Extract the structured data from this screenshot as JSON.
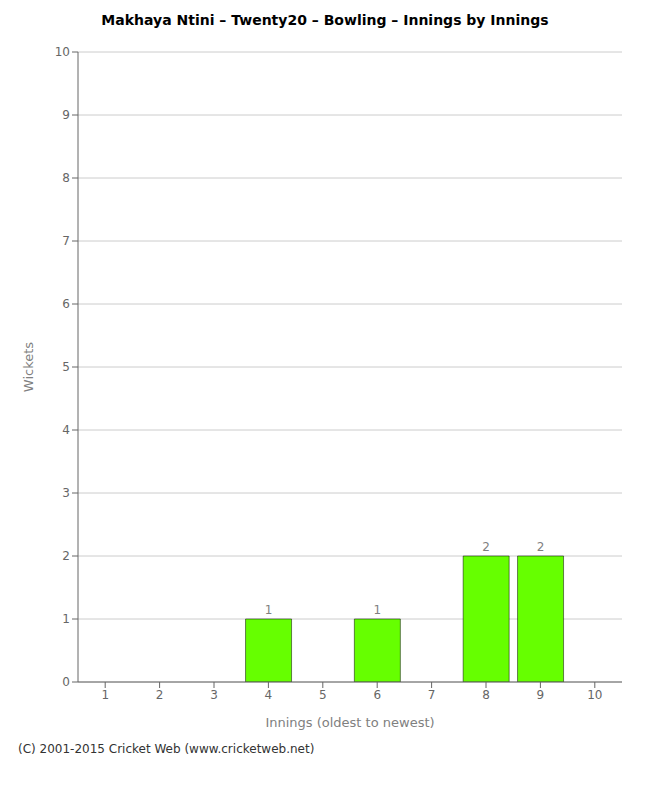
{
  "chart_data": {
    "type": "bar",
    "title": "Makhaya Ntini – Twenty20 – Bowling – Innings by Innings",
    "x_label": "Innings (oldest to newest)",
    "y_label": "Wickets",
    "categories": [
      1,
      2,
      3,
      4,
      5,
      6,
      7,
      8,
      9,
      10
    ],
    "values": [
      0,
      0,
      0,
      1,
      0,
      1,
      0,
      2,
      2,
      0
    ],
    "color": "#66ff00",
    "ylim": [
      0,
      10
    ],
    "yticks": [
      0,
      1,
      2,
      3,
      4,
      5,
      6,
      7,
      8,
      9,
      10
    ],
    "grid": true,
    "data_labels": true,
    "annotations": [
      "(C) 2001-2015 Cricket Web (www.cricketweb.net)"
    ]
  }
}
